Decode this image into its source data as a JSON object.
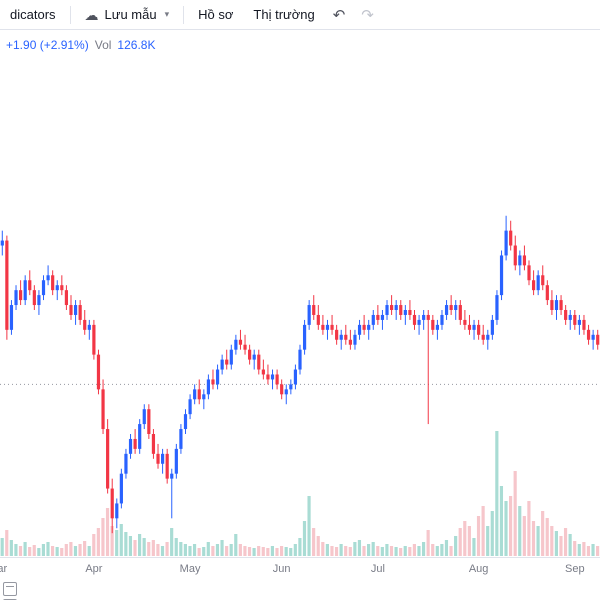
{
  "toolbar": {
    "indicators_label": "dicators",
    "save_template_label": "Lưu mẫu",
    "profile_label": "Hồ sơ",
    "market_label": "Thị trường"
  },
  "legend": {
    "change": "+1.90 (+2.91%)",
    "vol_label": "Vol",
    "vol_value": "126.8K"
  },
  "chart_data": {
    "type": "candlestick",
    "ylim": [
      0,
      100
    ],
    "baseline": 35,
    "grid": false,
    "colors": {
      "up": "#2962FF",
      "down": "#F23645",
      "vol_up": "#A9DCD4",
      "vol_down": "#F6C6CB",
      "baseline": "#9598A1"
    },
    "months": [
      {
        "label": "ar",
        "index": 0
      },
      {
        "label": "Apr",
        "index": 20
      },
      {
        "label": "May",
        "index": 41
      },
      {
        "label": "Jun",
        "index": 61
      },
      {
        "label": "Jul",
        "index": 82
      },
      {
        "label": "Aug",
        "index": 104
      },
      {
        "label": "Sep",
        "index": 125
      }
    ],
    "candles": [
      [
        63,
        66,
        61,
        64
      ],
      [
        64,
        65,
        44,
        46
      ],
      [
        46,
        52,
        45,
        51
      ],
      [
        51,
        55,
        50,
        54
      ],
      [
        54,
        56,
        51,
        52
      ],
      [
        52,
        57,
        51,
        56
      ],
      [
        56,
        58,
        53,
        54
      ],
      [
        54,
        55,
        50,
        51
      ],
      [
        51,
        54,
        49,
        53
      ],
      [
        53,
        57,
        52,
        56
      ],
      [
        56,
        59,
        55,
        57
      ],
      [
        57,
        58,
        53,
        54
      ],
      [
        54,
        56,
        52,
        55
      ],
      [
        55,
        57,
        53,
        54
      ],
      [
        54,
        55,
        50,
        51
      ],
      [
        51,
        53,
        48,
        49
      ],
      [
        49,
        52,
        47,
        51
      ],
      [
        51,
        52,
        47,
        48
      ],
      [
        48,
        50,
        45,
        46
      ],
      [
        46,
        48,
        44,
        47
      ],
      [
        47,
        48,
        40,
        41
      ],
      [
        41,
        42,
        33,
        34
      ],
      [
        34,
        36,
        25,
        26
      ],
      [
        26,
        28,
        13,
        14
      ],
      [
        14,
        16,
        5,
        8
      ],
      [
        8,
        12,
        6,
        11
      ],
      [
        11,
        18,
        10,
        17
      ],
      [
        17,
        22,
        16,
        21
      ],
      [
        21,
        25,
        20,
        24
      ],
      [
        24,
        26,
        21,
        22
      ],
      [
        22,
        28,
        21,
        27
      ],
      [
        27,
        31,
        26,
        30
      ],
      [
        30,
        31,
        24,
        25
      ],
      [
        25,
        26,
        20,
        21
      ],
      [
        21,
        23,
        18,
        19
      ],
      [
        19,
        22,
        17,
        21
      ],
      [
        21,
        22,
        15,
        16
      ],
      [
        16,
        18,
        8,
        17
      ],
      [
        17,
        23,
        16,
        22
      ],
      [
        22,
        27,
        21,
        26
      ],
      [
        26,
        30,
        25,
        29
      ],
      [
        29,
        33,
        28,
        32
      ],
      [
        32,
        35,
        31,
        34
      ],
      [
        34,
        36,
        31,
        32
      ],
      [
        32,
        34,
        30,
        33
      ],
      [
        33,
        37,
        32,
        36
      ],
      [
        36,
        38,
        34,
        35
      ],
      [
        35,
        39,
        34,
        38
      ],
      [
        38,
        41,
        37,
        40
      ],
      [
        40,
        42,
        38,
        39
      ],
      [
        39,
        43,
        38,
        42
      ],
      [
        42,
        45,
        41,
        44
      ],
      [
        44,
        46,
        42,
        43
      ],
      [
        43,
        45,
        41,
        42
      ],
      [
        42,
        43,
        39,
        40
      ],
      [
        40,
        42,
        38,
        41
      ],
      [
        41,
        42,
        37,
        38
      ],
      [
        38,
        40,
        36,
        37
      ],
      [
        37,
        39,
        35,
        36
      ],
      [
        36,
        38,
        34,
        37
      ],
      [
        37,
        38,
        34,
        35
      ],
      [
        35,
        36,
        32,
        33
      ],
      [
        33,
        35,
        31,
        34
      ],
      [
        34,
        36,
        33,
        35
      ],
      [
        35,
        39,
        34,
        38
      ],
      [
        38,
        43,
        37,
        42
      ],
      [
        42,
        48,
        41,
        47
      ],
      [
        47,
        52,
        46,
        51
      ],
      [
        51,
        53,
        48,
        49
      ],
      [
        49,
        51,
        46,
        47
      ],
      [
        47,
        49,
        45,
        46
      ],
      [
        46,
        48,
        44,
        47
      ],
      [
        47,
        49,
        45,
        46
      ],
      [
        46,
        47,
        43,
        44
      ],
      [
        44,
        46,
        42,
        45
      ],
      [
        45,
        47,
        43,
        44
      ],
      [
        44,
        46,
        42,
        43
      ],
      [
        43,
        46,
        42,
        45
      ],
      [
        45,
        48,
        44,
        47
      ],
      [
        47,
        49,
        45,
        46
      ],
      [
        46,
        48,
        44,
        47
      ],
      [
        47,
        50,
        46,
        49
      ],
      [
        49,
        51,
        47,
        48
      ],
      [
        48,
        50,
        46,
        49
      ],
      [
        49,
        52,
        48,
        51
      ],
      [
        51,
        53,
        49,
        50
      ],
      [
        50,
        52,
        48,
        51
      ],
      [
        51,
        52,
        48,
        49
      ],
      [
        49,
        51,
        47,
        50
      ],
      [
        50,
        52,
        48,
        49
      ],
      [
        49,
        50,
        46,
        47
      ],
      [
        47,
        49,
        45,
        48
      ],
      [
        48,
        50,
        46,
        49
      ],
      [
        49,
        50,
        27,
        48
      ],
      [
        48,
        49,
        45,
        46
      ],
      [
        46,
        48,
        44,
        47
      ],
      [
        47,
        50,
        46,
        49
      ],
      [
        49,
        52,
        48,
        51
      ],
      [
        51,
        53,
        49,
        50
      ],
      [
        50,
        52,
        48,
        51
      ],
      [
        51,
        52,
        47,
        48
      ],
      [
        48,
        50,
        46,
        47
      ],
      [
        47,
        49,
        45,
        46
      ],
      [
        46,
        48,
        44,
        47
      ],
      [
        47,
        48,
        44,
        45
      ],
      [
        45,
        47,
        43,
        44
      ],
      [
        44,
        46,
        42,
        45
      ],
      [
        45,
        49,
        44,
        48
      ],
      [
        48,
        54,
        47,
        53
      ],
      [
        53,
        62,
        52,
        61
      ],
      [
        61,
        69,
        60,
        66
      ],
      [
        66,
        68,
        62,
        63
      ],
      [
        63,
        65,
        58,
        59
      ],
      [
        59,
        62,
        57,
        61
      ],
      [
        61,
        63,
        58,
        59
      ],
      [
        59,
        60,
        55,
        56
      ],
      [
        56,
        58,
        53,
        54
      ],
      [
        54,
        58,
        53,
        57
      ],
      [
        57,
        59,
        54,
        55
      ],
      [
        55,
        56,
        51,
        52
      ],
      [
        52,
        54,
        49,
        50
      ],
      [
        50,
        53,
        48,
        52
      ],
      [
        52,
        53,
        49,
        50
      ],
      [
        50,
        51,
        47,
        48
      ],
      [
        48,
        50,
        46,
        49
      ],
      [
        49,
        50,
        46,
        47
      ],
      [
        47,
        49,
        45,
        48
      ],
      [
        48,
        49,
        45,
        46
      ],
      [
        46,
        47,
        43,
        44
      ],
      [
        44,
        46,
        42,
        45
      ],
      [
        45,
        46,
        42,
        43
      ]
    ],
    "volumes": [
      18,
      26,
      16,
      12,
      10,
      14,
      9,
      11,
      8,
      12,
      14,
      10,
      9,
      8,
      12,
      14,
      10,
      12,
      15,
      10,
      22,
      28,
      38,
      48,
      30,
      26,
      32,
      24,
      20,
      16,
      22,
      18,
      14,
      16,
      12,
      10,
      14,
      28,
      18,
      14,
      12,
      10,
      12,
      8,
      9,
      14,
      10,
      12,
      16,
      10,
      12,
      22,
      12,
      10,
      9,
      8,
      10,
      9,
      8,
      10,
      8,
      10,
      9,
      8,
      12,
      18,
      35,
      60,
      28,
      20,
      14,
      12,
      10,
      9,
      12,
      10,
      9,
      14,
      16,
      10,
      12,
      14,
      10,
      9,
      12,
      10,
      9,
      8,
      10,
      9,
      12,
      10,
      14,
      26,
      12,
      10,
      12,
      16,
      10,
      20,
      28,
      35,
      30,
      18,
      40,
      50,
      30,
      45,
      125,
      70,
      55,
      60,
      85,
      50,
      40,
      55,
      35,
      30,
      45,
      38,
      30,
      25,
      20,
      28,
      22,
      15,
      12,
      14,
      10,
      12,
      10
    ]
  }
}
